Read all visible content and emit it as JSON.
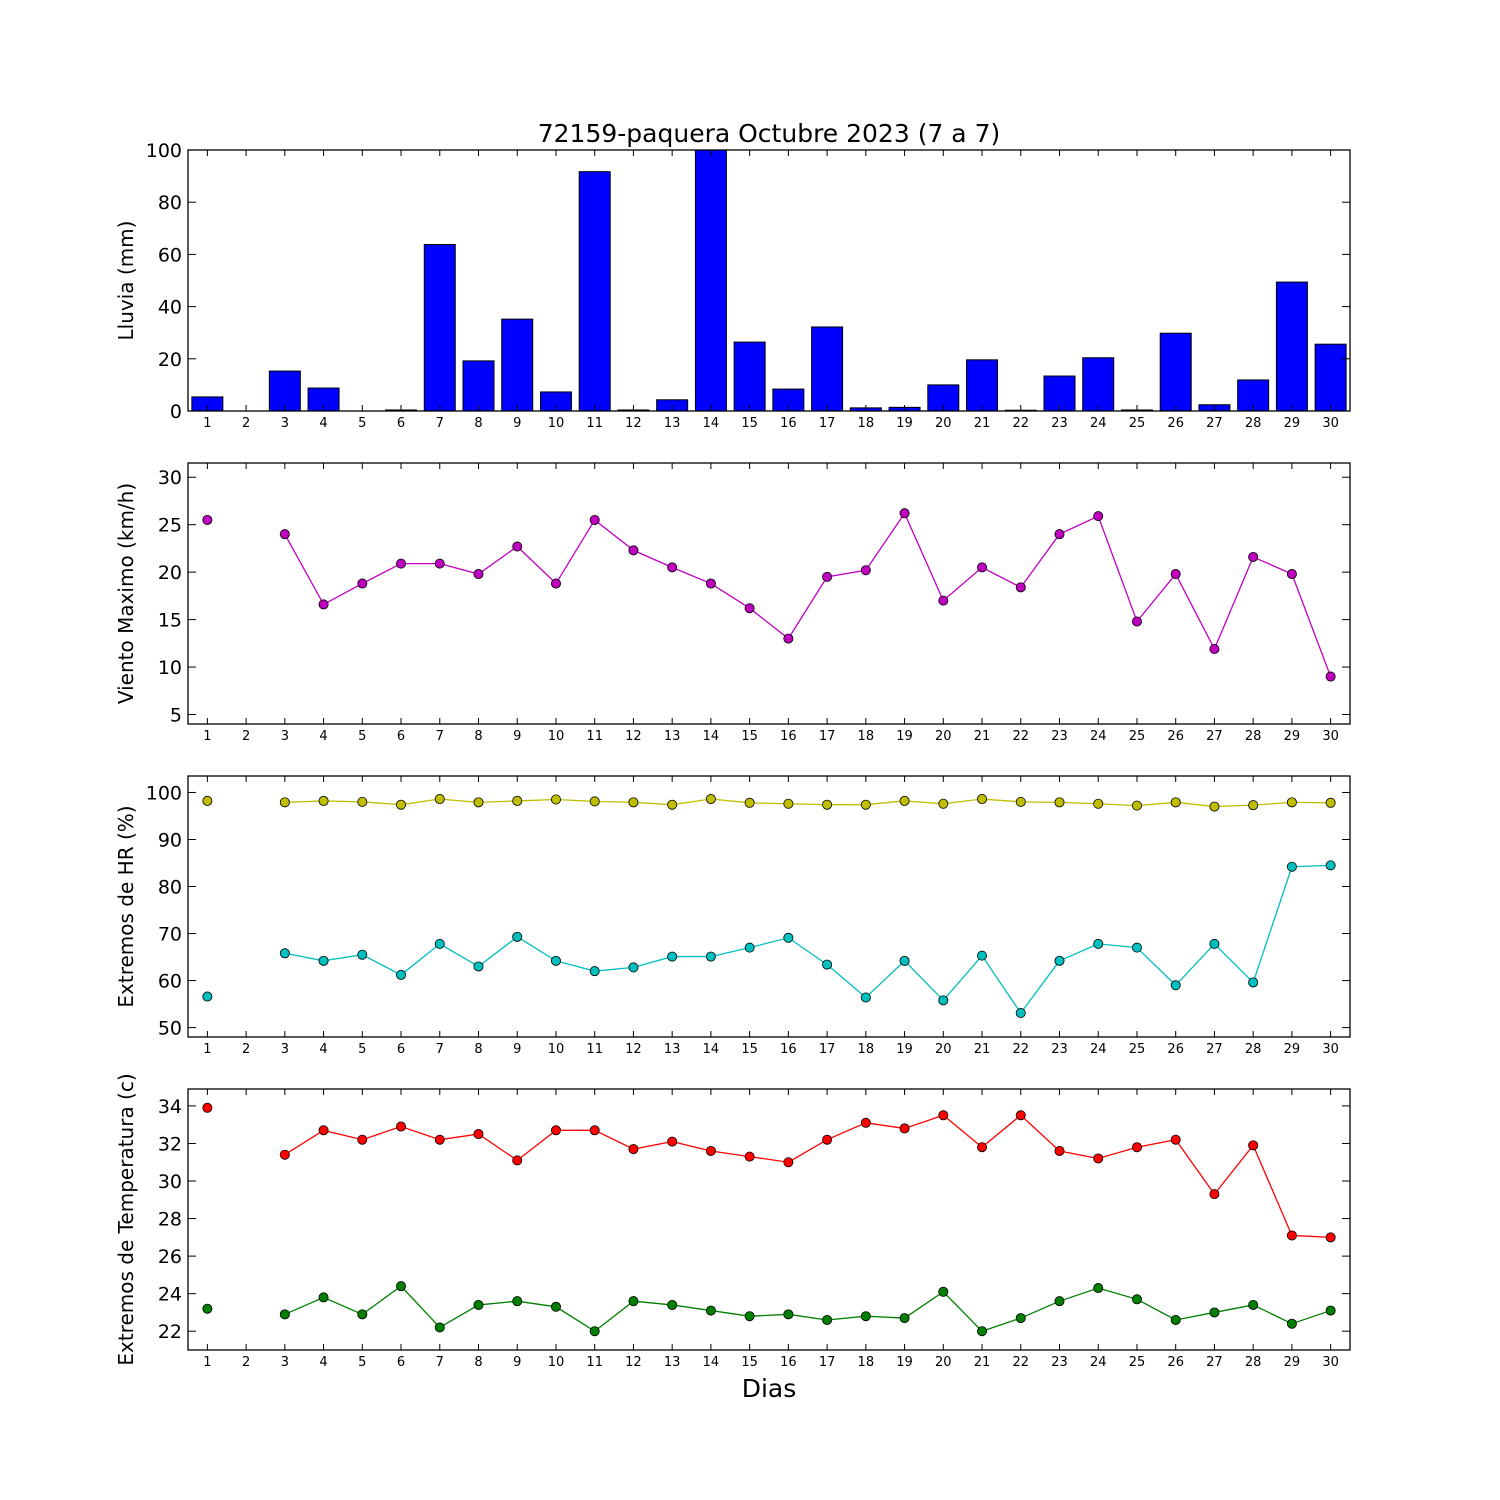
{
  "title": "72159-paquera Octubre 2023  (7 a 7)",
  "xlabel": "Dias",
  "days": [
    1,
    2,
    3,
    4,
    5,
    6,
    7,
    8,
    9,
    10,
    11,
    12,
    13,
    14,
    15,
    16,
    17,
    18,
    19,
    20,
    21,
    22,
    23,
    24,
    25,
    26,
    27,
    28,
    29,
    30
  ],
  "chart_data": [
    {
      "type": "bar",
      "ylabel": "Lluvia (mm)",
      "ylim": [
        0,
        100
      ],
      "yticks": [
        0,
        20,
        40,
        60,
        80,
        100
      ],
      "categories": [
        1,
        2,
        3,
        4,
        5,
        6,
        7,
        8,
        9,
        10,
        11,
        12,
        13,
        14,
        15,
        16,
        17,
        18,
        19,
        20,
        21,
        22,
        23,
        24,
        25,
        26,
        27,
        28,
        29,
        30
      ],
      "series": [
        {
          "color": "#0000ff",
          "values": [
            5.4,
            0,
            15.3,
            8.8,
            0,
            0.4,
            63.8,
            19.2,
            35.2,
            7.3,
            91.7,
            0.4,
            4.3,
            100.0,
            26.4,
            8.4,
            32.2,
            1.2,
            1.4,
            10.0,
            19.6,
            0.3,
            13.4,
            20.4,
            0.4,
            29.8,
            2.4,
            11.9,
            49.4,
            25.6
          ]
        }
      ]
    },
    {
      "type": "line",
      "ylabel": "Viento Maximo (km/h)",
      "ylim": [
        4,
        31.5
      ],
      "yticks": [
        5,
        10,
        15,
        20,
        25,
        30
      ],
      "x": [
        1,
        2,
        3,
        4,
        5,
        6,
        7,
        8,
        9,
        10,
        11,
        12,
        13,
        14,
        15,
        16,
        17,
        18,
        19,
        20,
        21,
        22,
        23,
        24,
        25,
        26,
        27,
        28,
        29,
        30
      ],
      "series": [
        {
          "color": "#bf00bf",
          "values": [
            25.5,
            null,
            24.0,
            16.6,
            18.8,
            20.9,
            20.9,
            19.8,
            22.7,
            18.8,
            25.5,
            22.3,
            20.5,
            18.8,
            16.2,
            13.0,
            19.5,
            20.2,
            26.2,
            17.0,
            20.5,
            18.4,
            24.0,
            25.9,
            14.8,
            19.8,
            11.9,
            21.6,
            19.8,
            9.0
          ]
        }
      ]
    },
    {
      "type": "line",
      "ylabel": "Extremos de HR (%)",
      "ylim": [
        48,
        103.5
      ],
      "yticks": [
        50,
        60,
        70,
        80,
        90,
        100
      ],
      "x": [
        1,
        2,
        3,
        4,
        5,
        6,
        7,
        8,
        9,
        10,
        11,
        12,
        13,
        14,
        15,
        16,
        17,
        18,
        19,
        20,
        21,
        22,
        23,
        24,
        25,
        26,
        27,
        28,
        29,
        30
      ],
      "series": [
        {
          "color": "#bfbf00",
          "values": [
            98.2,
            null,
            97.9,
            98.2,
            98.0,
            97.4,
            98.6,
            97.9,
            98.2,
            98.5,
            98.1,
            97.9,
            97.4,
            98.6,
            97.8,
            97.6,
            97.4,
            97.4,
            98.2,
            97.6,
            98.6,
            98.0,
            97.9,
            97.6,
            97.2,
            97.9,
            97.0,
            97.3,
            97.9,
            97.8
          ]
        },
        {
          "color": "#00bfbf",
          "values": [
            56.6,
            null,
            65.8,
            64.2,
            65.5,
            61.2,
            67.8,
            63.0,
            69.3,
            64.2,
            62.0,
            62.8,
            65.1,
            65.1,
            67.0,
            69.1,
            63.4,
            56.4,
            64.2,
            55.8,
            65.3,
            53.1,
            64.2,
            67.8,
            67.0,
            59.0,
            67.8,
            59.6,
            84.2,
            84.5
          ]
        }
      ]
    },
    {
      "type": "line",
      "ylabel": "Extremos de Temperatura (c)",
      "ylim": [
        21,
        34.9
      ],
      "yticks": [
        22,
        24,
        26,
        28,
        30,
        32,
        34
      ],
      "x": [
        1,
        2,
        3,
        4,
        5,
        6,
        7,
        8,
        9,
        10,
        11,
        12,
        13,
        14,
        15,
        16,
        17,
        18,
        19,
        20,
        21,
        22,
        23,
        24,
        25,
        26,
        27,
        28,
        29,
        30
      ],
      "series": [
        {
          "color": "#ff0000",
          "values": [
            33.9,
            null,
            31.4,
            32.7,
            32.2,
            32.9,
            32.2,
            32.5,
            31.1,
            32.7,
            32.7,
            31.7,
            32.1,
            31.6,
            31.3,
            31.0,
            32.2,
            33.1,
            32.8,
            33.5,
            31.8,
            33.5,
            31.6,
            31.2,
            31.8,
            32.2,
            29.3,
            31.9,
            27.1,
            27.0
          ]
        },
        {
          "color": "#007f00",
          "values": [
            23.2,
            null,
            22.9,
            23.8,
            22.9,
            24.4,
            22.2,
            23.4,
            23.6,
            23.3,
            22.0,
            23.6,
            23.4,
            23.1,
            22.8,
            22.9,
            22.6,
            22.8,
            22.7,
            24.1,
            22.0,
            22.7,
            23.6,
            24.3,
            23.7,
            22.6,
            23.0,
            23.4,
            22.4,
            23.1
          ]
        }
      ]
    }
  ]
}
